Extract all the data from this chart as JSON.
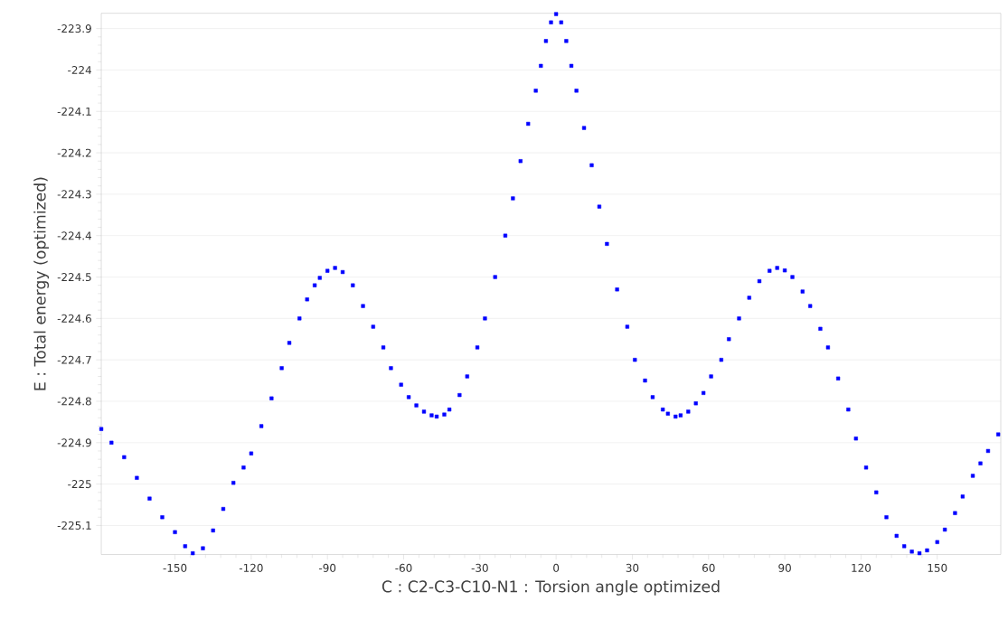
{
  "chart_data": {
    "type": "scatter",
    "xlabel": "C : C2-C3-C10-N1 : Torsion angle optimized",
    "ylabel": "E : Total energy (optimized)",
    "xlim": [
      -179,
      175
    ],
    "ylim": [
      -225.17,
      -223.863
    ],
    "xticks": [
      -150,
      -120,
      -90,
      -60,
      -30,
      0,
      30,
      60,
      90,
      120,
      150
    ],
    "yticks": [
      -223.9,
      -224,
      -224.1,
      -224.2,
      -224.3,
      -224.4,
      -224.5,
      -224.6,
      -224.7,
      -224.8,
      -224.9,
      -225,
      -225.1
    ],
    "grid": "y",
    "marker": "square",
    "color": "#0000ff",
    "x": [
      -179,
      -175,
      -170,
      -165,
      -160,
      -155,
      -150,
      -146,
      -143,
      -139,
      -135,
      -131,
      -127,
      -123,
      -120,
      -116,
      -112,
      -108,
      -105,
      -101,
      -98,
      -95,
      -93,
      -90,
      -87,
      -84,
      -80,
      -76,
      -72,
      -68,
      -65,
      -61,
      -58,
      -55,
      -52,
      -49,
      -47,
      -44,
      -42,
      -38,
      -35,
      -31,
      -28,
      -24,
      -20,
      -17,
      -14,
      -11,
      -8,
      -6,
      -4,
      -2,
      0,
      2,
      4,
      6,
      8,
      11,
      14,
      17,
      20,
      24,
      28,
      31,
      35,
      38,
      42,
      44,
      47,
      49,
      52,
      55,
      58,
      61,
      65,
      68,
      72,
      76,
      80,
      84,
      87,
      90,
      93,
      97,
      100,
      104,
      107,
      111,
      115,
      118,
      122,
      126,
      130,
      134,
      137,
      140,
      143,
      146,
      150,
      153,
      157,
      160,
      164,
      167,
      170,
      174
    ],
    "values": [
      -224.867,
      -224.9,
      -224.935,
      -224.985,
      -225.035,
      -225.08,
      -225.116,
      -225.15,
      -225.167,
      -225.155,
      -225.112,
      -225.06,
      -224.997,
      -224.96,
      -224.926,
      -224.86,
      -224.793,
      -224.72,
      -224.659,
      -224.6,
      -224.554,
      -224.52,
      -224.502,
      -224.485,
      -224.478,
      -224.488,
      -224.52,
      -224.57,
      -224.62,
      -224.67,
      -224.72,
      -224.76,
      -224.79,
      -224.81,
      -224.825,
      -224.834,
      -224.837,
      -224.832,
      -224.82,
      -224.785,
      -224.74,
      -224.67,
      -224.6,
      -224.5,
      -224.4,
      -224.31,
      -224.22,
      -224.13,
      -224.05,
      -223.99,
      -223.93,
      -223.885,
      -223.865,
      -223.885,
      -223.93,
      -223.99,
      -224.05,
      -224.14,
      -224.23,
      -224.33,
      -224.42,
      -224.53,
      -224.62,
      -224.7,
      -224.75,
      -224.79,
      -224.82,
      -224.83,
      -224.837,
      -224.834,
      -224.825,
      -224.805,
      -224.78,
      -224.74,
      -224.7,
      -224.65,
      -224.6,
      -224.55,
      -224.51,
      -224.485,
      -224.478,
      -224.484,
      -224.5,
      -224.535,
      -224.57,
      -224.625,
      -224.67,
      -224.745,
      -224.82,
      -224.89,
      -224.96,
      -225.02,
      -225.08,
      -225.125,
      -225.15,
      -225.163,
      -225.167,
      -225.16,
      -225.14,
      -225.11,
      -225.07,
      -225.03,
      -224.98,
      -224.95,
      -224.92,
      -224.88
    ]
  }
}
